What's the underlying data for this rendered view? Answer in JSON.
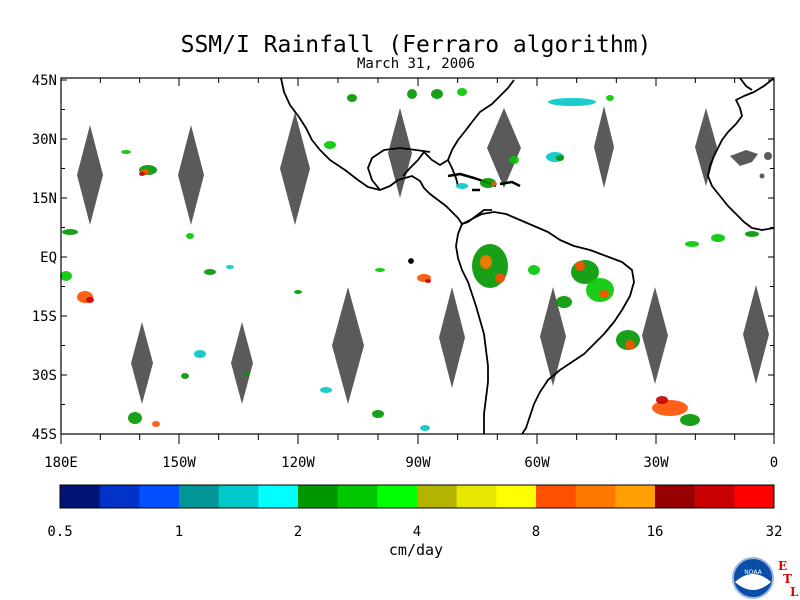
{
  "title": "SSM/I Rainfall (Ferraro algorithm)",
  "date": "March 31, 2006",
  "map": {
    "lat_labels": [
      "45N",
      "30N",
      "15N",
      "EQ",
      "15S",
      "30S",
      "45S"
    ],
    "lon_labels": [
      "180E",
      "150W",
      "120W",
      "90W",
      "60W",
      "30W",
      "0"
    ],
    "land_color": "#ffffff",
    "coastline_color": "#000000",
    "no_data_color": "#5a5a5a"
  },
  "colorbar": {
    "unit_label": "cm/day",
    "tick_labels": [
      "0.5",
      "1",
      "2",
      "4",
      "8",
      "16",
      "32"
    ],
    "colors": [
      "#001478",
      "#0032c8",
      "#0050ff",
      "#009696",
      "#00c8c8",
      "#00ffff",
      "#009600",
      "#00c800",
      "#00ff00",
      "#b4b400",
      "#e6e600",
      "#ffff00",
      "#ff5000",
      "#ff7800",
      "#ffa000",
      "#960000",
      "#c80000",
      "#ff0000"
    ]
  },
  "logos": {
    "noaa_text": "NOAA",
    "etl_letters": [
      "E",
      "T",
      "L"
    ],
    "etl_color": "#e00000",
    "noaa_blue": "#0a4ea8"
  }
}
